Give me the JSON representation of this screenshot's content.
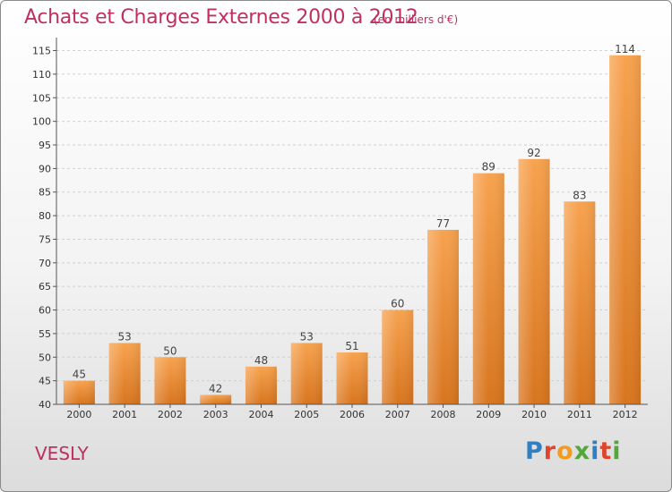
{
  "header": {
    "title": "Achats et Charges Externes 2000 à 2012",
    "subtitle": "(en milliers d'€)"
  },
  "footer": {
    "location": "VESLY",
    "logo_text": "Proxiti"
  },
  "colors": {
    "title": "#c0305e",
    "bar_light": "#f7a24e",
    "bar_dark": "#d8751e",
    "grid": "#d0d0d0",
    "axis": "#555555"
  },
  "chart_data": {
    "type": "bar",
    "title": "Achats et Charges Externes 2000 à 2012",
    "subtitle": "(en milliers d'€)",
    "categories": [
      "2000",
      "2001",
      "2002",
      "2003",
      "2004",
      "2005",
      "2006",
      "2007",
      "2008",
      "2009",
      "2010",
      "2011",
      "2012"
    ],
    "values": [
      45,
      53,
      50,
      42,
      48,
      53,
      51,
      60,
      77,
      89,
      92,
      83,
      114
    ],
    "ylim": [
      40,
      117
    ],
    "yticks": [
      40,
      45,
      50,
      55,
      60,
      65,
      70,
      75,
      80,
      85,
      90,
      95,
      100,
      105,
      110,
      115
    ],
    "grid": "horizontal-dashed",
    "legend": "none",
    "xlabel": "",
    "ylabel": ""
  }
}
